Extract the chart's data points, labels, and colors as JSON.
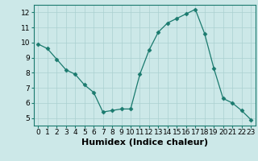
{
  "x": [
    0,
    1,
    2,
    3,
    4,
    5,
    6,
    7,
    8,
    9,
    10,
    11,
    12,
    13,
    14,
    15,
    16,
    17,
    18,
    19,
    20,
    21,
    22,
    23
  ],
  "y": [
    9.9,
    9.6,
    8.9,
    8.2,
    7.9,
    7.2,
    6.7,
    5.4,
    5.5,
    5.6,
    5.6,
    7.9,
    9.5,
    10.7,
    11.3,
    11.6,
    11.9,
    12.2,
    10.6,
    8.3,
    6.3,
    6.0,
    5.5,
    4.9
  ],
  "line_color": "#1a7a6e",
  "marker": "D",
  "marker_size": 2.5,
  "bg_color": "#cce8e8",
  "grid_color": "#aad0d0",
  "xlabel": "Humidex (Indice chaleur)",
  "xlim": [
    -0.5,
    23.5
  ],
  "ylim": [
    4.5,
    12.5
  ],
  "yticks": [
    5,
    6,
    7,
    8,
    9,
    10,
    11,
    12
  ],
  "xticks": [
    0,
    1,
    2,
    3,
    4,
    5,
    6,
    7,
    8,
    9,
    10,
    11,
    12,
    13,
    14,
    15,
    16,
    17,
    18,
    19,
    20,
    21,
    22,
    23
  ],
  "tick_labelsize": 6.5,
  "xlabel_fontsize": 8,
  "border_color": "#1a7a6e",
  "spine_color": "#1a7a6e"
}
